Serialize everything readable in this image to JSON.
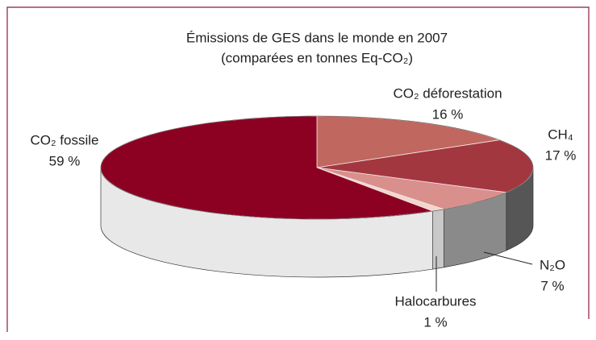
{
  "chart_data": {
    "type": "pie3d",
    "title": "Émissions de GES dans le monde en 2007",
    "subtitle": "(comparées en tonnes Eq-CO₂)",
    "categories": [
      "CO₂ déforestation",
      "CH₄",
      "N₂O",
      "Halocarbures",
      "CO₂ fossile"
    ],
    "values": [
      16,
      17,
      7,
      1,
      59
    ],
    "value_labels": [
      "16 %",
      "17 %",
      "7 %",
      "1 %",
      "59 %"
    ],
    "colors": [
      "#c0675f",
      "#a3373f",
      "#d98f8c",
      "#f2d6cc",
      "#8c0022"
    ],
    "side_colors": [
      "#9a4a44",
      "#565656",
      "#8a8a8a",
      "#c8c8c8",
      "#e8e8e8"
    ]
  }
}
